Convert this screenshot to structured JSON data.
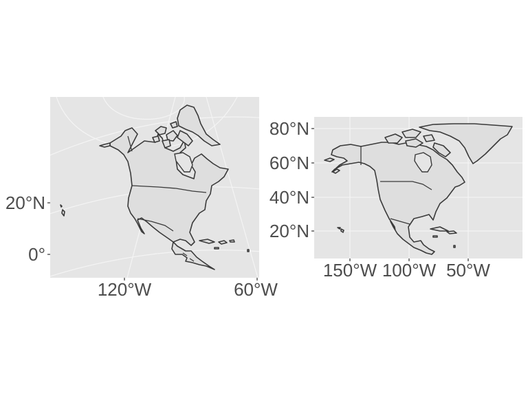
{
  "panels": [
    {
      "id": "projected",
      "projection": "lambert-conic",
      "y_ticks": [
        "20°N",
        "0°"
      ],
      "x_ticks": [
        "120°W",
        "60°W"
      ]
    },
    {
      "id": "geographic",
      "projection": "longlat",
      "y_ticks": [
        "80°N",
        "60°N",
        "40°N",
        "20°N"
      ],
      "x_ticks": [
        "150°W",
        "100°W",
        "50°W"
      ]
    }
  ],
  "colors": {
    "panel_background": "#e5e5e5",
    "land_fill": "#dedede",
    "outline": "#3a3a3a",
    "gridline": "#f4f4f4",
    "axis_text": "#4d4d4d"
  }
}
